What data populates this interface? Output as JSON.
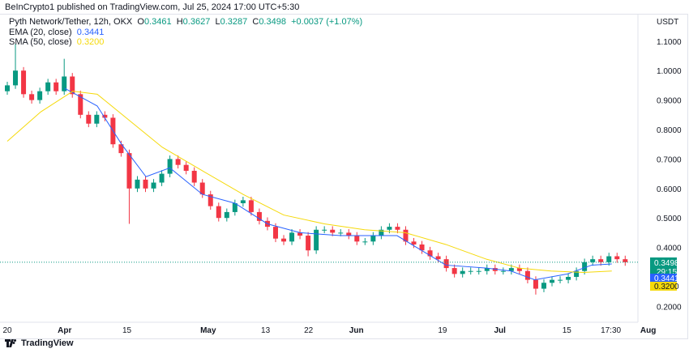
{
  "header": {
    "published": "BeInCrypto1 published on TradingView.com, Jul 25, 2024 17:00 UTC+5:30"
  },
  "legend": {
    "symbol": "Pyth Network/Tether, 12h, OKX",
    "o_label": "O",
    "o": "0.3461",
    "h_label": "H",
    "h": "0.3627",
    "l_label": "L",
    "l": "0.3287",
    "c_label": "C",
    "c": "0.3498",
    "change": "+0.0037 (+1.07%)",
    "ema_label": "EMA (20, close)",
    "ema_value": "0.3441",
    "sma_label": "SMA (50, close)",
    "sma_value": "0.3200"
  },
  "footer": {
    "brand": "TradingView"
  },
  "chart_data": {
    "type": "candlestick",
    "currency": "USDT",
    "ylim": [
      0.16,
      1.18
    ],
    "xlim_days": [
      0,
      134
    ],
    "y_ticks": [
      "1.1000",
      "1.0000",
      "0.9000",
      "0.8000",
      "0.7000",
      "0.6000",
      "0.5000",
      "0.4000",
      "0.2000"
    ],
    "y_tick_values": [
      1.1,
      1.0,
      0.9,
      0.8,
      0.7,
      0.6,
      0.5,
      0.4,
      0.2
    ],
    "x_ticks": [
      {
        "label": "20",
        "day": 0
      },
      {
        "label": "Apr",
        "day": 12
      },
      {
        "label": "15",
        "day": 25
      },
      {
        "label": "May",
        "day": 42
      },
      {
        "label": "13",
        "day": 54
      },
      {
        "label": "22",
        "day": 63
      },
      {
        "label": "Jun",
        "day": 73
      },
      {
        "label": "19",
        "day": 91
      },
      {
        "label": "Jul",
        "day": 103
      },
      {
        "label": "15",
        "day": 117
      },
      {
        "label": "17:30",
        "day": 126.2
      },
      {
        "label": "Aug",
        "day": 134
      }
    ],
    "candles": {
      "start_day": 0,
      "step_days": 1.7,
      "first_open": 0.93,
      "closes": [
        0.95,
        1.0,
        0.92,
        0.9,
        0.93,
        0.96,
        0.93,
        0.98,
        0.92,
        0.85,
        0.82,
        0.85,
        0.84,
        0.75,
        0.72,
        0.6,
        0.63,
        0.6,
        0.62,
        0.65,
        0.7,
        0.68,
        0.66,
        0.62,
        0.58,
        0.54,
        0.5,
        0.52,
        0.55,
        0.56,
        0.52,
        0.49,
        0.47,
        0.43,
        0.42,
        0.45,
        0.44,
        0.39,
        0.46,
        0.46,
        0.45,
        0.45,
        0.44,
        0.42,
        0.42,
        0.44,
        0.46,
        0.47,
        0.46,
        0.42,
        0.41,
        0.39,
        0.37,
        0.36,
        0.33,
        0.31,
        0.32,
        0.32,
        0.32,
        0.33,
        0.32,
        0.32,
        0.33,
        0.32,
        0.29,
        0.26,
        0.28,
        0.29,
        0.29,
        0.3,
        0.32,
        0.35,
        0.36,
        0.35,
        0.37,
        0.36,
        0.3498
      ],
      "wick_overrides": [
        {
          "index": 1,
          "high": 1.09
        },
        {
          "index": 7,
          "high": 1.04
        },
        {
          "index": 15,
          "low": 0.48
        },
        {
          "index": 37,
          "low": 0.37
        },
        {
          "index": 65,
          "low": 0.24
        }
      ]
    },
    "series": [
      {
        "name": "EMA (20, close)",
        "color": "#2962ff",
        "points": [
          [
            12,
            0.94
          ],
          [
            18.8,
            0.88
          ],
          [
            23.9,
            0.75
          ],
          [
            29,
            0.64
          ],
          [
            34,
            0.67
          ],
          [
            40.8,
            0.58
          ],
          [
            47.6,
            0.55
          ],
          [
            54.4,
            0.48
          ],
          [
            61.2,
            0.45
          ],
          [
            69.7,
            0.44
          ],
          [
            76.4,
            0.44
          ],
          [
            81.5,
            0.44
          ],
          [
            86.6,
            0.39
          ],
          [
            91.7,
            0.34
          ],
          [
            100.2,
            0.33
          ],
          [
            105.3,
            0.32
          ],
          [
            110.3,
            0.29
          ],
          [
            117.1,
            0.31
          ],
          [
            122.2,
            0.34
          ],
          [
            126.4,
            0.3441
          ]
        ]
      },
      {
        "name": "SMA (50, close)",
        "color": "#f5d90a",
        "points": [
          [
            0,
            0.76
          ],
          [
            7,
            0.86
          ],
          [
            13.7,
            0.93
          ],
          [
            18.8,
            0.92
          ],
          [
            25.6,
            0.83
          ],
          [
            32.4,
            0.74
          ],
          [
            40.8,
            0.66
          ],
          [
            49.3,
            0.58
          ],
          [
            57.8,
            0.51
          ],
          [
            66.3,
            0.48
          ],
          [
            74.7,
            0.46
          ],
          [
            83.2,
            0.45
          ],
          [
            91.7,
            0.41
          ],
          [
            100.2,
            0.36
          ],
          [
            107,
            0.33
          ],
          [
            113.7,
            0.32
          ],
          [
            120.5,
            0.315
          ],
          [
            126.4,
            0.32
          ]
        ]
      }
    ],
    "price_labels": {
      "last": "0.3498",
      "countdown": "29:15",
      "ema": "0.3441",
      "sma": "0.3200"
    },
    "colors": {
      "up": "#089981",
      "down": "#f23645",
      "last": "#089981",
      "ema": "#2962ff",
      "sma": "#f5d90a"
    }
  }
}
